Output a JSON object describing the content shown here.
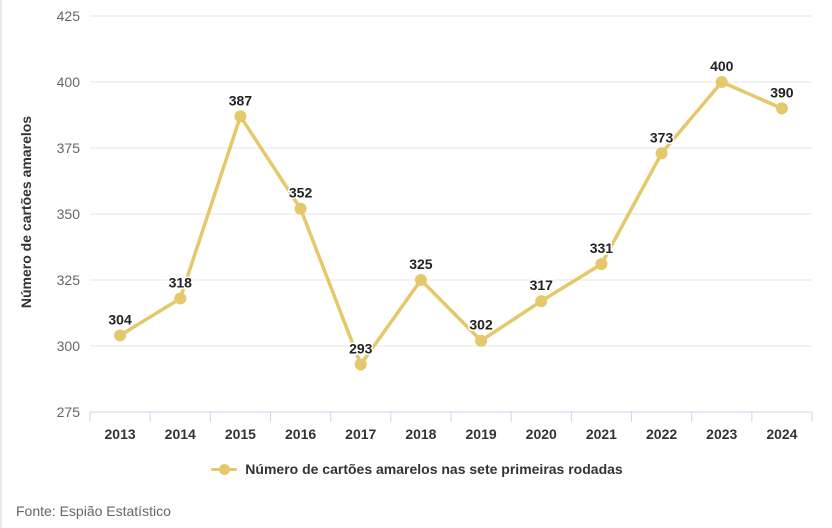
{
  "chart": {
    "y_axis_title": "Número de cartões amarelos",
    "legend_label": "Número de cartões amarelos nas sete primeiras rodadas",
    "source_text": "Fonte: Espião Estatístico"
  },
  "chart_data": {
    "type": "line",
    "title": "",
    "xlabel": "",
    "ylabel": "Número de cartões amarelos",
    "categories": [
      "2013",
      "2014",
      "2015",
      "2016",
      "2017",
      "2018",
      "2019",
      "2020",
      "2021",
      "2022",
      "2023",
      "2024"
    ],
    "series": [
      {
        "name": "Número de cartões amarelos nas sete primeiras rodadas",
        "values": [
          304,
          318,
          387,
          352,
          293,
          325,
          302,
          317,
          331,
          373,
          400,
          390
        ]
      }
    ],
    "ylim": [
      275,
      425
    ],
    "yticks": [
      275,
      300,
      325,
      350,
      375,
      400,
      425
    ],
    "grid": true,
    "data_labels": true,
    "legend_position": "bottom",
    "colors": {
      "line": "#e5c869",
      "grid": "#e6e6e6",
      "axis": "#ccd6eb",
      "data_label": "#222222",
      "y_tick_label": "#666666",
      "x_tick_label": "#333333"
    }
  }
}
